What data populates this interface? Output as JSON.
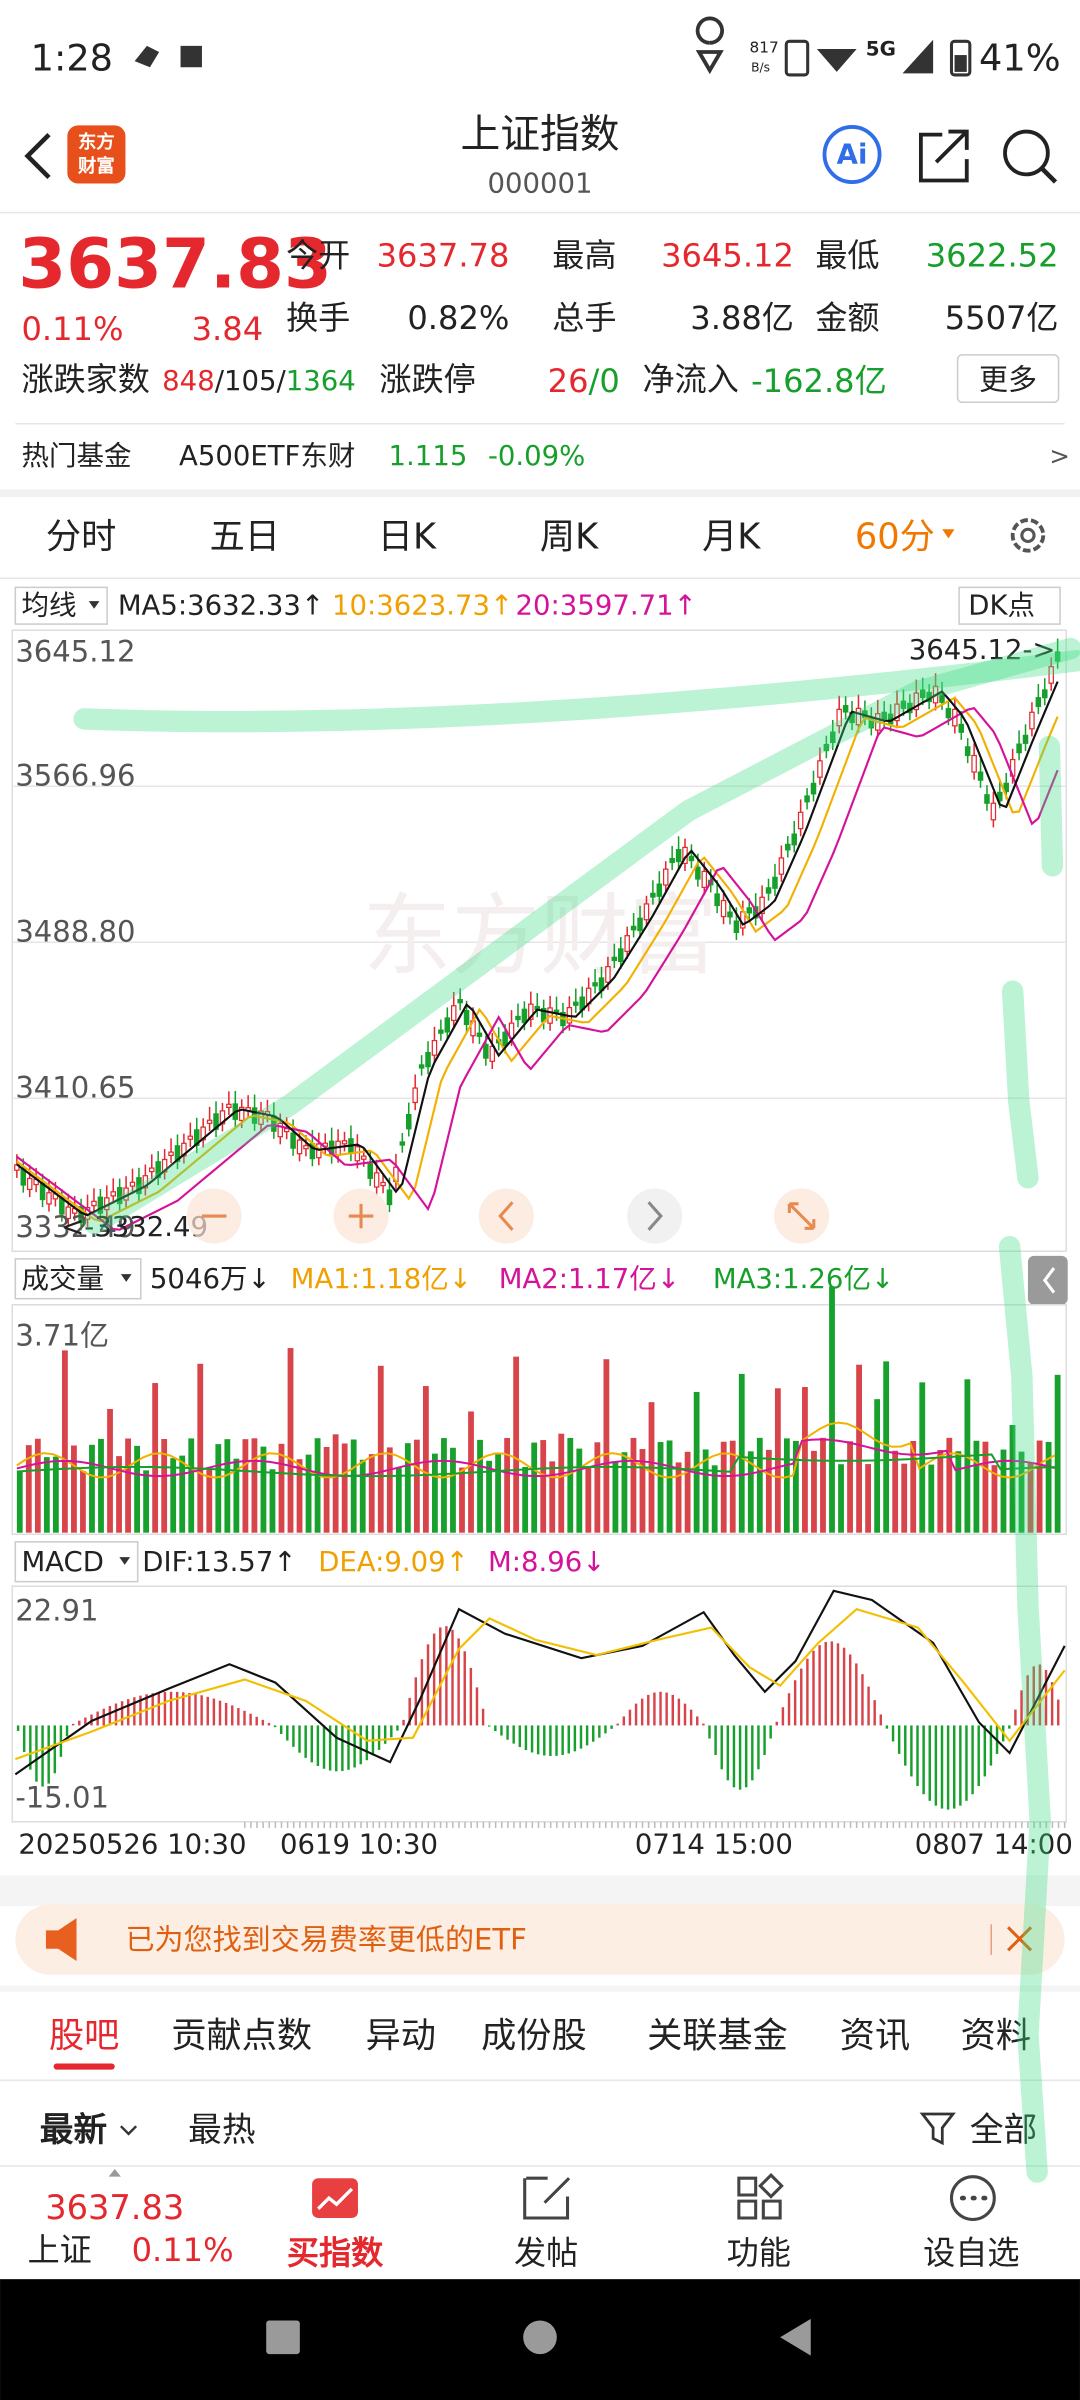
{
  "status_bar": {
    "time": "1:28",
    "speed": "817",
    "speed_unit": "B/s",
    "network": "5G",
    "battery": "41%"
  },
  "header": {
    "logo_lines": [
      "东方",
      "财富"
    ],
    "title": "上证指数",
    "code": "000001",
    "ai": "Ai"
  },
  "quote": {
    "price": "3637.83",
    "change_pct": "0.11%",
    "change": "3.84",
    "fields": [
      [
        {
          "label": "今开",
          "value": "3637.78"
        },
        {
          "label": "最高",
          "value": "3645.12"
        },
        {
          "label": "最低",
          "value": "3622.52"
        }
      ],
      [
        {
          "label": "换手",
          "value": "0.82%"
        },
        {
          "label": "总手",
          "value": "3.88亿"
        },
        {
          "label": "金额",
          "value": "5507亿"
        }
      ]
    ],
    "breadth": {
      "label": "涨跌家数",
      "parts": [
        "848",
        "/105/",
        "1364"
      ]
    },
    "limit": {
      "label": "涨跌停",
      "parts": [
        "26",
        "/0"
      ]
    },
    "inflow": {
      "label": "净流入",
      "value": "-162.8亿"
    },
    "more": "更多"
  },
  "hot_fund": {
    "label": "热门基金",
    "name": "A500ETF东财",
    "price": "1.115",
    "change": "-0.09%",
    "arrow": ">"
  },
  "period_tabs": [
    "分时",
    "五日",
    "日K",
    "周K",
    "月K",
    "60分"
  ],
  "ma_bar": {
    "selector": "均线",
    "ma5": "MA5:3632.33↑",
    "ma10": "10:3623.73↑",
    "ma20": "20:3597.71↑",
    "dk": "DK点"
  },
  "price_chart": {
    "y_labels": [
      "3645.12",
      "3566.96",
      "3488.80",
      "3410.65",
      "3332.49"
    ],
    "high_note": "3645.12->",
    "low_note": "<-3332.49",
    "watermark": "东方财富"
  },
  "volume": {
    "selector": "成交量",
    "vol": "5046万↓",
    "ma1": "MA1:1.18亿↓",
    "ma2": "MA2:1.17亿↓",
    "ma3": "MA3:1.26亿↓",
    "max_label": "3.71亿"
  },
  "macd": {
    "selector": "MACD",
    "dif": "DIF:13.57↑",
    "dea": "DEA:9.09↑",
    "m": "M:8.96↓",
    "y_labels": [
      "22.91",
      "-15.01"
    ]
  },
  "date_axis": [
    "20250526 10:30",
    "0619 10:30",
    "0714 15:00",
    "0807 14:00"
  ],
  "banner": {
    "text": "已为您找到交易费率更低的ETF"
  },
  "content_tabs": [
    "股吧",
    "贡献点数",
    "异动",
    "成份股",
    "关联基金",
    "资讯",
    "资料"
  ],
  "sort": {
    "latest": "最新",
    "hottest": "最热",
    "filter": "全部"
  },
  "bottom_bar": {
    "price": "3637.83",
    "name": "上证",
    "pct": "0.11%",
    "items": [
      "买指数",
      "发帖",
      "功能",
      "设自选"
    ]
  }
}
